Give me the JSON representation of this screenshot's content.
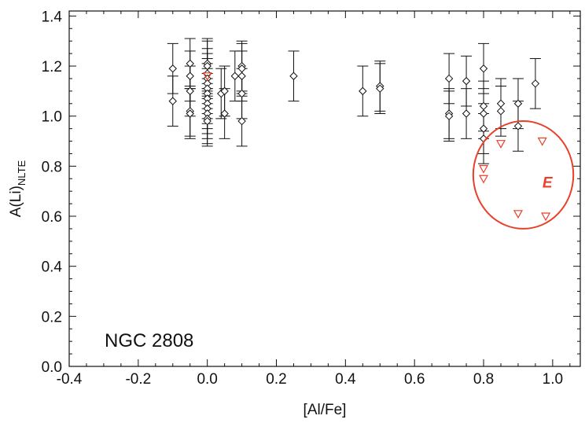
{
  "chart_data": {
    "type": "scatter",
    "title": "",
    "xlabel": "[Al/Fe]",
    "ylabel": "A(Li)",
    "ylabel_subscript": "NLTE",
    "xlim": [
      -0.4,
      1.08
    ],
    "ylim": [
      0.0,
      1.42
    ],
    "x_ticks": [
      "-0.4",
      "-0.2",
      "0.0",
      "0.2",
      "0.4",
      "0.6",
      "0.8",
      "1.0"
    ],
    "y_ticks": [
      "0.0",
      "0.2",
      "0.4",
      "0.6",
      "0.8",
      "1.0",
      "1.2",
      "1.4"
    ],
    "annotation": "NGC 2808",
    "group_label": "E",
    "colors": {
      "detections": "#111111",
      "upper_limits": "#e8402a",
      "group_ellipse": "#e8402a"
    },
    "grid": false,
    "series": [
      {
        "marker": "diamond",
        "points": [
          {
            "x": -0.1,
            "y": 1.19,
            "err": 0.1
          },
          {
            "x": -0.1,
            "y": 1.06,
            "err": 0.1
          },
          {
            "x": -0.05,
            "y": 1.21,
            "err": 0.1
          },
          {
            "x": -0.05,
            "y": 1.16,
            "err": 0.1
          },
          {
            "x": -0.05,
            "y": 1.1,
            "err": 0.1
          },
          {
            "x": -0.05,
            "y": 1.02,
            "err": 0.1
          },
          {
            "x": -0.05,
            "y": 1.01,
            "err": 0.1
          },
          {
            "x": 0.0,
            "y": 1.21,
            "err": 0.1
          },
          {
            "x": 0.0,
            "y": 1.2,
            "err": 0.1
          },
          {
            "x": 0.0,
            "y": 1.17,
            "err": 0.1
          },
          {
            "x": 0.0,
            "y": 1.15,
            "err": 0.1
          },
          {
            "x": 0.0,
            "y": 1.13,
            "err": 0.1
          },
          {
            "x": 0.0,
            "y": 1.11,
            "err": 0.1
          },
          {
            "x": 0.0,
            "y": 1.09,
            "err": 0.1
          },
          {
            "x": 0.0,
            "y": 1.07,
            "err": 0.1
          },
          {
            "x": 0.0,
            "y": 1.05,
            "err": 0.1
          },
          {
            "x": 0.0,
            "y": 1.03,
            "err": 0.1
          },
          {
            "x": 0.0,
            "y": 1.01,
            "err": 0.1
          },
          {
            "x": 0.0,
            "y": 0.99,
            "err": 0.1
          },
          {
            "x": 0.0,
            "y": 0.98,
            "err": 0.1
          },
          {
            "x": 0.04,
            "y": 1.09,
            "err": 0.1
          },
          {
            "x": 0.05,
            "y": 1.1,
            "err": 0.1
          },
          {
            "x": 0.05,
            "y": 1.01,
            "err": 0.1
          },
          {
            "x": 0.08,
            "y": 1.16,
            "err": 0.1
          },
          {
            "x": 0.1,
            "y": 1.2,
            "err": 0.1
          },
          {
            "x": 0.1,
            "y": 1.19,
            "err": 0.1
          },
          {
            "x": 0.1,
            "y": 1.16,
            "err": 0.1
          },
          {
            "x": 0.1,
            "y": 1.09,
            "err": 0.1
          },
          {
            "x": 0.1,
            "y": 0.98,
            "err": 0.1
          },
          {
            "x": 0.25,
            "y": 1.16,
            "err": 0.1
          },
          {
            "x": 0.45,
            "y": 1.1,
            "err": 0.1
          },
          {
            "x": 0.5,
            "y": 1.12,
            "err": 0.1
          },
          {
            "x": 0.5,
            "y": 1.11,
            "err": 0.1
          },
          {
            "x": 0.7,
            "y": 1.15,
            "err": 0.1
          },
          {
            "x": 0.7,
            "y": 1.01,
            "err": 0.1
          },
          {
            "x": 0.7,
            "y": 1.0,
            "err": 0.1
          },
          {
            "x": 0.75,
            "y": 1.14,
            "err": 0.1
          },
          {
            "x": 0.75,
            "y": 1.01,
            "err": 0.1
          },
          {
            "x": 0.8,
            "y": 1.19,
            "err": 0.1
          },
          {
            "x": 0.8,
            "y": 1.04,
            "err": 0.1
          },
          {
            "x": 0.8,
            "y": 1.01,
            "err": 0.1
          },
          {
            "x": 0.8,
            "y": 0.95,
            "err": 0.1
          },
          {
            "x": 0.8,
            "y": 0.91,
            "err": 0.1
          },
          {
            "x": 0.85,
            "y": 1.05,
            "err": 0.1
          },
          {
            "x": 0.85,
            "y": 1.02,
            "err": 0.1
          },
          {
            "x": 0.9,
            "y": 1.05,
            "err": 0.1
          },
          {
            "x": 0.9,
            "y": 0.96,
            "err": 0.1
          },
          {
            "x": 0.95,
            "y": 1.13,
            "err": 0.1
          }
        ]
      },
      {
        "marker": "triangle-down",
        "points": [
          {
            "x": 0.0,
            "y": 1.16
          },
          {
            "x": 0.8,
            "y": 0.79
          },
          {
            "x": 0.8,
            "y": 0.75
          },
          {
            "x": 0.85,
            "y": 0.89
          },
          {
            "x": 0.9,
            "y": 0.61
          },
          {
            "x": 0.97,
            "y": 0.9
          },
          {
            "x": 0.98,
            "y": 0.6
          }
        ]
      }
    ],
    "ellipse": {
      "cx": 0.915,
      "cy": 0.765,
      "rx": 0.145,
      "ry": 0.215
    }
  }
}
